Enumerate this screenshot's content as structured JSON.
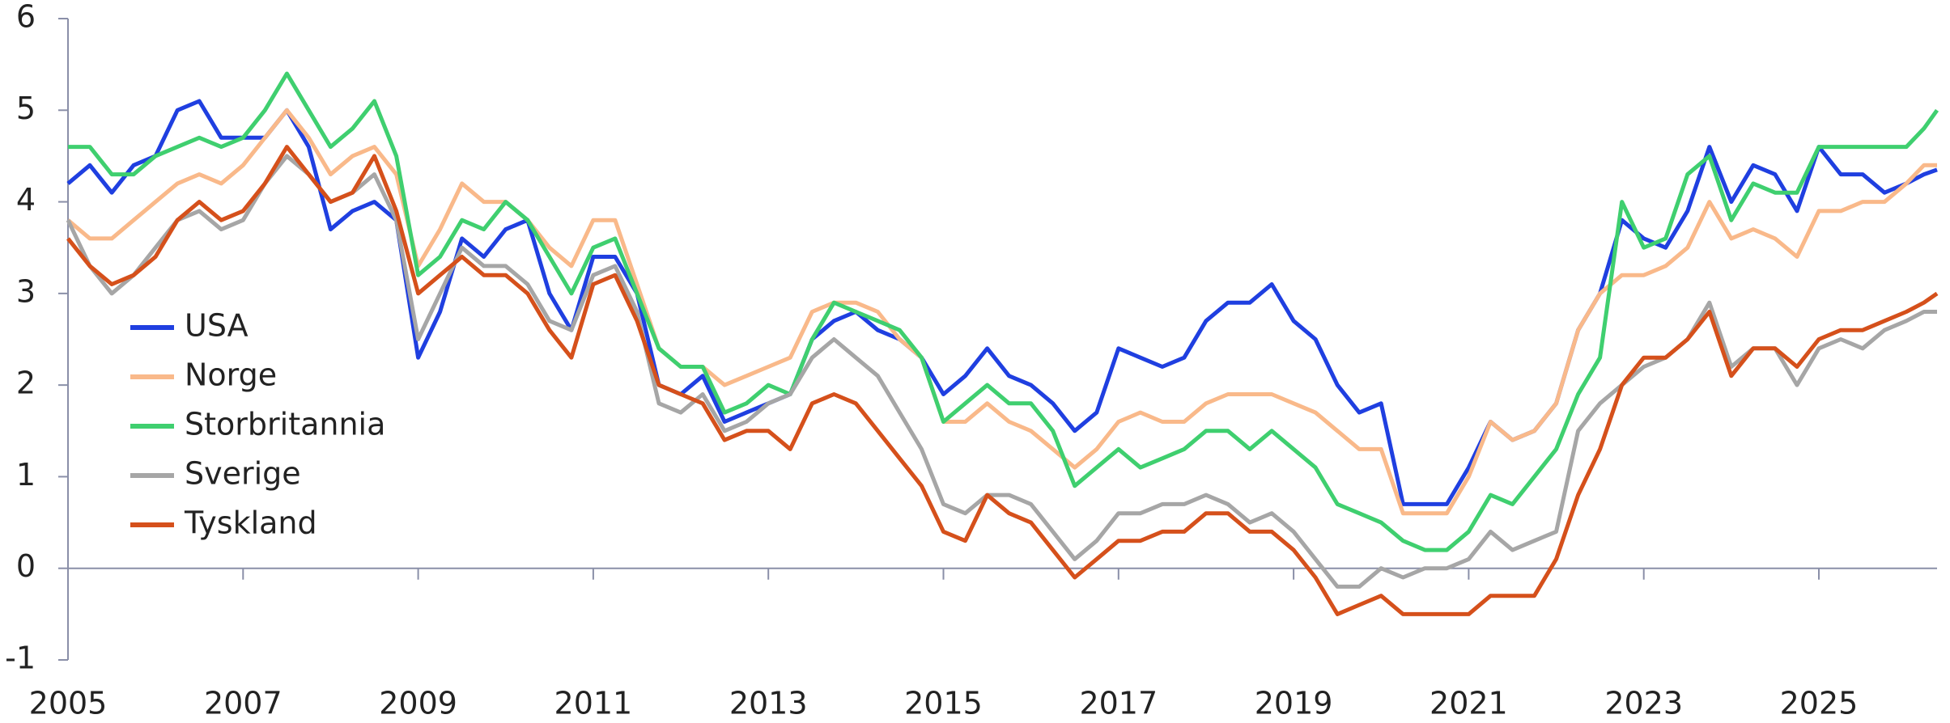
{
  "chart_data": {
    "type": "line",
    "x": [
      2005,
      2005.25,
      2005.5,
      2005.75,
      2006,
      2006.25,
      2006.5,
      2006.75,
      2007,
      2007.25,
      2007.5,
      2007.75,
      2008,
      2008.25,
      2008.5,
      2008.75,
      2009,
      2009.25,
      2009.5,
      2009.75,
      2010,
      2010.25,
      2010.5,
      2010.75,
      2011,
      2011.25,
      2011.5,
      2011.75,
      2012,
      2012.25,
      2012.5,
      2012.75,
      2013,
      2013.25,
      2013.5,
      2013.75,
      2014,
      2014.25,
      2014.5,
      2014.75,
      2015,
      2015.25,
      2015.5,
      2015.75,
      2016,
      2016.25,
      2016.5,
      2016.75,
      2017,
      2017.25,
      2017.5,
      2017.75,
      2018,
      2018.25,
      2018.5,
      2018.75,
      2019,
      2019.25,
      2019.5,
      2019.75,
      2020,
      2020.25,
      2020.5,
      2020.75,
      2021,
      2021.25,
      2021.5,
      2021.75,
      2022,
      2022.25,
      2022.5,
      2022.75,
      2023,
      2023.25,
      2023.5,
      2023.75,
      2024,
      2024.25,
      2024.5,
      2024.75,
      2025,
      2025.25,
      2025.5,
      2025.75,
      2026,
      2026.2,
      2026.35
    ],
    "series": [
      {
        "name": "USA",
        "color": "#1f3fe0",
        "values": [
          4.2,
          4.4,
          4.1,
          4.4,
          4.5,
          5.0,
          5.1,
          4.7,
          4.7,
          4.7,
          5.0,
          4.6,
          3.7,
          3.9,
          4.0,
          3.8,
          2.3,
          2.8,
          3.6,
          3.4,
          3.7,
          3.8,
          3.0,
          2.6,
          3.4,
          3.4,
          3.0,
          2.0,
          1.9,
          2.1,
          1.6,
          1.7,
          1.8,
          1.9,
          2.5,
          2.7,
          2.8,
          2.6,
          2.5,
          2.3,
          1.9,
          2.1,
          2.4,
          2.1,
          2.0,
          1.8,
          1.5,
          1.7,
          2.4,
          2.3,
          2.2,
          2.3,
          2.7,
          2.9,
          2.9,
          3.1,
          2.7,
          2.5,
          2.0,
          1.7,
          1.8,
          0.7,
          0.7,
          0.7,
          1.1,
          1.6,
          1.4,
          1.5,
          1.8,
          2.6,
          3.0,
          3.8,
          3.6,
          3.5,
          3.9,
          4.6,
          4.0,
          4.4,
          4.3,
          3.9,
          4.6,
          4.3,
          4.3,
          4.1,
          4.2,
          4.3,
          4.35
        ]
      },
      {
        "name": "Norge",
        "color": "#f9b98a",
        "values": [
          3.8,
          3.6,
          3.6,
          3.8,
          4.0,
          4.2,
          4.3,
          4.2,
          4.4,
          4.7,
          5.0,
          4.7,
          4.3,
          4.5,
          4.6,
          4.3,
          3.3,
          3.7,
          4.2,
          4.0,
          4.0,
          3.8,
          3.5,
          3.3,
          3.8,
          3.8,
          3.1,
          2.4,
          2.2,
          2.2,
          2.0,
          2.1,
          2.2,
          2.3,
          2.8,
          2.9,
          2.9,
          2.8,
          2.5,
          2.3,
          1.6,
          1.6,
          1.8,
          1.6,
          1.5,
          1.3,
          1.1,
          1.3,
          1.6,
          1.7,
          1.6,
          1.6,
          1.8,
          1.9,
          1.9,
          1.9,
          1.8,
          1.7,
          1.5,
          1.3,
          1.3,
          0.6,
          0.6,
          0.6,
          1.0,
          1.6,
          1.4,
          1.5,
          1.8,
          2.6,
          3.0,
          3.2,
          3.2,
          3.3,
          3.5,
          4.0,
          3.6,
          3.7,
          3.6,
          3.4,
          3.9,
          3.9,
          4.0,
          4.0,
          4.2,
          4.4,
          4.4
        ]
      },
      {
        "name": "Storbritannia",
        "color": "#3fcf6f",
        "values": [
          4.6,
          4.6,
          4.3,
          4.3,
          4.5,
          4.6,
          4.7,
          4.6,
          4.7,
          5.0,
          5.4,
          5.0,
          4.6,
          4.8,
          5.1,
          4.5,
          3.2,
          3.4,
          3.8,
          3.7,
          4.0,
          3.8,
          3.4,
          3.0,
          3.5,
          3.6,
          3.0,
          2.4,
          2.2,
          2.2,
          1.7,
          1.8,
          2.0,
          1.9,
          2.5,
          2.9,
          2.8,
          2.7,
          2.6,
          2.3,
          1.6,
          1.8,
          2.0,
          1.8,
          1.8,
          1.5,
          0.9,
          1.1,
          1.3,
          1.1,
          1.2,
          1.3,
          1.5,
          1.5,
          1.3,
          1.5,
          1.3,
          1.1,
          0.7,
          0.6,
          0.5,
          0.3,
          0.2,
          0.2,
          0.4,
          0.8,
          0.7,
          1.0,
          1.3,
          1.9,
          2.3,
          4.0,
          3.5,
          3.6,
          4.3,
          4.5,
          3.8,
          4.2,
          4.1,
          4.1,
          4.6,
          4.6,
          4.6,
          4.6,
          4.6,
          4.8,
          5.0
        ]
      },
      {
        "name": "Sverige",
        "color": "#a6a6a6",
        "values": [
          3.8,
          3.3,
          3.0,
          3.2,
          3.5,
          3.8,
          3.9,
          3.7,
          3.8,
          4.2,
          4.5,
          4.3,
          4.0,
          4.1,
          4.3,
          3.8,
          2.5,
          3.0,
          3.5,
          3.3,
          3.3,
          3.1,
          2.7,
          2.6,
          3.2,
          3.3,
          2.8,
          1.8,
          1.7,
          1.9,
          1.5,
          1.6,
          1.8,
          1.9,
          2.3,
          2.5,
          2.3,
          2.1,
          1.7,
          1.3,
          0.7,
          0.6,
          0.8,
          0.8,
          0.7,
          0.4,
          0.1,
          0.3,
          0.6,
          0.6,
          0.7,
          0.7,
          0.8,
          0.7,
          0.5,
          0.6,
          0.4,
          0.1,
          -0.2,
          -0.2,
          0.0,
          -0.1,
          0.0,
          0.0,
          0.1,
          0.4,
          0.2,
          0.3,
          0.4,
          1.5,
          1.8,
          2.0,
          2.2,
          2.3,
          2.5,
          2.9,
          2.2,
          2.4,
          2.4,
          2.0,
          2.4,
          2.5,
          2.4,
          2.6,
          2.7,
          2.8,
          2.8
        ]
      },
      {
        "name": "Tyskland",
        "color": "#d5501b",
        "values": [
          3.6,
          3.3,
          3.1,
          3.2,
          3.4,
          3.8,
          4.0,
          3.8,
          3.9,
          4.2,
          4.6,
          4.3,
          4.0,
          4.1,
          4.5,
          3.9,
          3.0,
          3.2,
          3.4,
          3.2,
          3.2,
          3.0,
          2.6,
          2.3,
          3.1,
          3.2,
          2.7,
          2.0,
          1.9,
          1.8,
          1.4,
          1.5,
          1.5,
          1.3,
          1.8,
          1.9,
          1.8,
          1.5,
          1.2,
          0.9,
          0.4,
          0.3,
          0.8,
          0.6,
          0.5,
          0.2,
          -0.1,
          0.1,
          0.3,
          0.3,
          0.4,
          0.4,
          0.6,
          0.6,
          0.4,
          0.4,
          0.2,
          -0.1,
          -0.5,
          -0.4,
          -0.3,
          -0.5,
          -0.5,
          -0.5,
          -0.5,
          -0.3,
          -0.3,
          -0.3,
          0.1,
          0.8,
          1.3,
          2.0,
          2.3,
          2.3,
          2.5,
          2.8,
          2.1,
          2.4,
          2.4,
          2.2,
          2.5,
          2.6,
          2.6,
          2.7,
          2.8,
          2.9,
          3.0
        ]
      }
    ],
    "xlim": [
      2005,
      2026.35
    ],
    "xticks": [
      2005,
      2007,
      2009,
      2011,
      2013,
      2015,
      2017,
      2019,
      2021,
      2023,
      2025
    ],
    "ylim": [
      -1,
      6
    ],
    "yticks": [
      -1,
      0,
      1,
      2,
      3,
      4,
      5,
      6
    ],
    "legend": "left"
  }
}
